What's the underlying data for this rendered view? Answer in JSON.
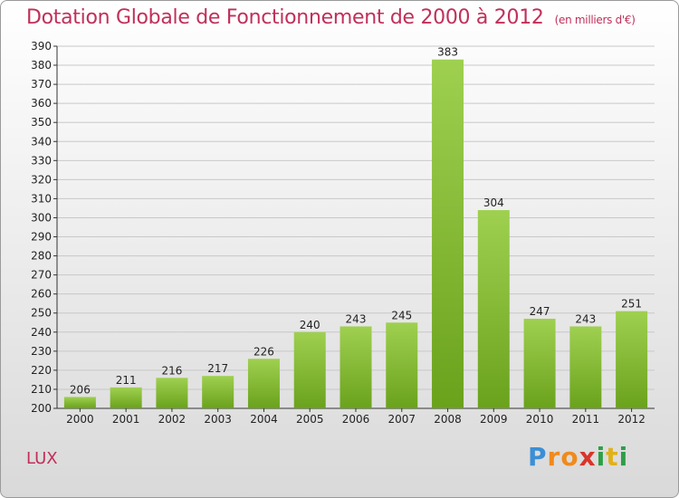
{
  "title": "Dotation Globale de Fonctionnement de 2000 à 2012",
  "subtitle": "(en milliers d'€)",
  "place": "LUX",
  "logo": {
    "letters": [
      "P",
      "r",
      "o",
      "x",
      "i",
      "t",
      "i"
    ]
  },
  "colors": {
    "title": "#c0305a",
    "bar_top": "#9fd050",
    "bar_bottom": "#6aa21c",
    "grid": "#c8c8c8"
  },
  "chart_data": {
    "type": "bar",
    "categories": [
      "2000",
      "2001",
      "2002",
      "2003",
      "2004",
      "2005",
      "2006",
      "2007",
      "2008",
      "2009",
      "2010",
      "2011",
      "2012"
    ],
    "values": [
      206,
      211,
      216,
      217,
      226,
      240,
      243,
      245,
      383,
      304,
      247,
      243,
      251
    ],
    "data_labels": [
      "206",
      "211",
      "216",
      "217",
      "226",
      "240",
      "243",
      "245",
      "383",
      "304",
      "247",
      "243",
      "251"
    ],
    "title": "Dotation Globale de Fonctionnement de 2000 à 2012",
    "subtitle": "(en milliers d'€)",
    "xlabel": "",
    "ylabel": "",
    "ylim": [
      200,
      390
    ],
    "yticks": [
      200,
      210,
      220,
      230,
      240,
      250,
      260,
      270,
      280,
      290,
      300,
      310,
      320,
      330,
      340,
      350,
      360,
      370,
      380,
      390
    ],
    "grid": true,
    "legend": "none"
  }
}
